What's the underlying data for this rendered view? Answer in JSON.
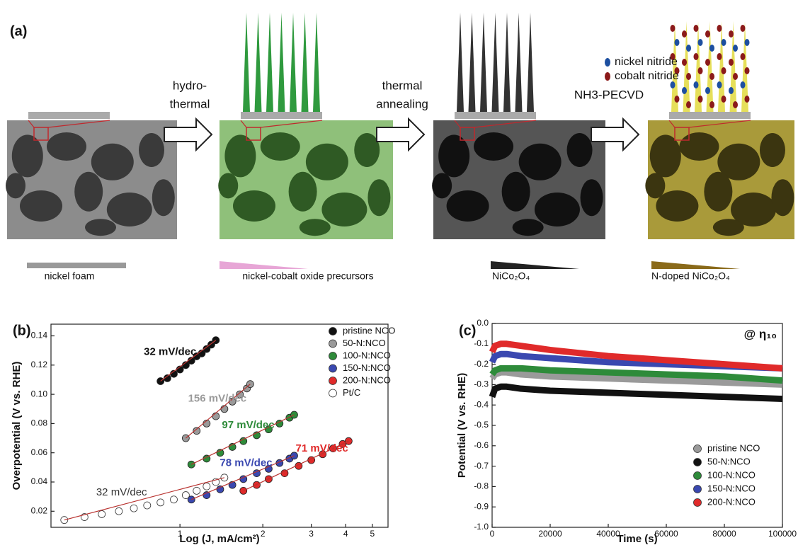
{
  "panel_a": {
    "label": "(a)",
    "steps": [
      [
        "hydro-",
        "thermal"
      ],
      [
        "thermal",
        "annealing"
      ],
      [
        "NH3-PECVD"
      ]
    ],
    "legend": [
      "nickel nitride",
      "cobalt nitride"
    ],
    "materials": [
      "nickel foam",
      "nickel-cobalt oxide precursors",
      "NiCo₂O₄",
      "N-doped NiCo₂O₄"
    ]
  },
  "chart_data": [
    {
      "type": "scatter",
      "label": "(b)",
      "x_label": "Log (J, mA/cm²)",
      "y_label": "Overpotential (V vs. RHE)",
      "log_x": true,
      "xlim": [
        0.34,
        5.7
      ],
      "xticks": [
        1,
        2,
        3,
        4,
        5
      ],
      "ylim": [
        0.009,
        0.148
      ],
      "yticks": [
        0.02,
        0.04,
        0.06,
        0.08,
        {
          "value": 0.1,
          "label": "0.10"
        },
        0.12,
        0.14
      ],
      "legend": "upper right",
      "series": [
        {
          "name": "pristine NCO",
          "color": "#111111",
          "annotation": "32 mV/dec",
          "x": [
            0.85,
            0.9,
            0.95,
            1.0,
            1.05,
            1.1,
            1.15,
            1.2,
            1.25,
            1.3,
            1.35
          ],
          "values": [
            0.109,
            0.111,
            0.114,
            0.117,
            0.12,
            0.123,
            0.126,
            0.128,
            0.131,
            0.134,
            0.137
          ]
        },
        {
          "name": "50-N:NCO",
          "color": "#9a9a9a",
          "annotation": "156 mV/dec",
          "x": [
            1.05,
            1.15,
            1.25,
            1.35,
            1.45,
            1.55,
            1.65,
            1.75,
            1.8
          ],
          "values": [
            0.07,
            0.075,
            0.08,
            0.085,
            0.09,
            0.095,
            0.1,
            0.104,
            0.107
          ]
        },
        {
          "name": "100-N:NCO",
          "color": "#2e8b3a",
          "annotation": "97 mV/dec",
          "x": [
            1.1,
            1.25,
            1.4,
            1.55,
            1.7,
            1.9,
            2.1,
            2.3,
            2.5,
            2.6
          ],
          "values": [
            0.052,
            0.056,
            0.06,
            0.064,
            0.068,
            0.072,
            0.076,
            0.08,
            0.084,
            0.086
          ]
        },
        {
          "name": "150-N:NCO",
          "color": "#3a48b0",
          "annotation": "78 mV/dec",
          "x": [
            1.1,
            1.25,
            1.4,
            1.55,
            1.7,
            1.9,
            2.1,
            2.3,
            2.5,
            2.6
          ],
          "values": [
            0.028,
            0.031,
            0.035,
            0.038,
            0.042,
            0.046,
            0.049,
            0.053,
            0.056,
            0.058
          ]
        },
        {
          "name": "200-N:NCO",
          "color": "#e02a2a",
          "annotation": "71 mV/dec",
          "x": [
            1.7,
            1.9,
            2.1,
            2.4,
            2.7,
            3.0,
            3.3,
            3.6,
            3.9,
            4.1
          ],
          "values": [
            0.034,
            0.038,
            0.042,
            0.046,
            0.051,
            0.055,
            0.059,
            0.063,
            0.066,
            0.068
          ]
        },
        {
          "name": "Pt/C",
          "color": "#333333",
          "marker": "open",
          "annotation": "32 mV/dec",
          "x": [
            0.38,
            0.45,
            0.52,
            0.6,
            0.68,
            0.76,
            0.85,
            0.95,
            1.05,
            1.15,
            1.25,
            1.35,
            1.45
          ],
          "values": [
            0.014,
            0.016,
            0.018,
            0.02,
            0.022,
            0.024,
            0.026,
            0.028,
            0.031,
            0.034,
            0.037,
            0.04,
            0.043
          ]
        }
      ]
    },
    {
      "type": "line",
      "label": "(c)",
      "x_label": "Time (s)",
      "y_label": "Potential (V vs. RHE)",
      "annotation": "@ η₁₀",
      "xlim": [
        0,
        100000
      ],
      "xticks": [
        0,
        20000,
        40000,
        60000,
        80000,
        100000
      ],
      "ylim": [
        -1,
        0
      ],
      "yticks": [
        {
          "value": 0,
          "label": "0.0"
        },
        -0.1,
        -0.2,
        -0.3,
        -0.4,
        -0.5,
        -0.6,
        -0.7,
        -0.8,
        -0.9,
        {
          "value": -1,
          "label": "-1.0"
        }
      ],
      "legend": "lower right",
      "x": [
        0,
        1000,
        3000,
        5000,
        10000,
        20000,
        40000,
        60000,
        80000,
        100000
      ],
      "series": [
        {
          "name": "pristine NCO",
          "color": "#9a9a9a",
          "values": [
            -0.27,
            -0.25,
            -0.24,
            -0.24,
            -0.25,
            -0.26,
            -0.27,
            -0.28,
            -0.29,
            -0.3
          ]
        },
        {
          "name": "50-N:NCO",
          "color": "#111111",
          "values": [
            -0.36,
            -0.32,
            -0.31,
            -0.31,
            -0.32,
            -0.33,
            -0.34,
            -0.35,
            -0.36,
            -0.37
          ]
        },
        {
          "name": "100-N:NCO",
          "color": "#2e8b3a",
          "values": [
            -0.25,
            -0.23,
            -0.22,
            -0.22,
            -0.22,
            -0.23,
            -0.24,
            -0.25,
            -0.26,
            -0.28
          ]
        },
        {
          "name": "150-N:NCO",
          "color": "#3a48b0",
          "values": [
            -0.19,
            -0.16,
            -0.15,
            -0.15,
            -0.16,
            -0.17,
            -0.19,
            -0.2,
            -0.21,
            -0.22
          ]
        },
        {
          "name": "200-N:NCO",
          "color": "#e02a2a",
          "values": [
            -0.14,
            -0.11,
            -0.1,
            -0.1,
            -0.11,
            -0.13,
            -0.16,
            -0.18,
            -0.2,
            -0.22
          ]
        }
      ]
    }
  ]
}
